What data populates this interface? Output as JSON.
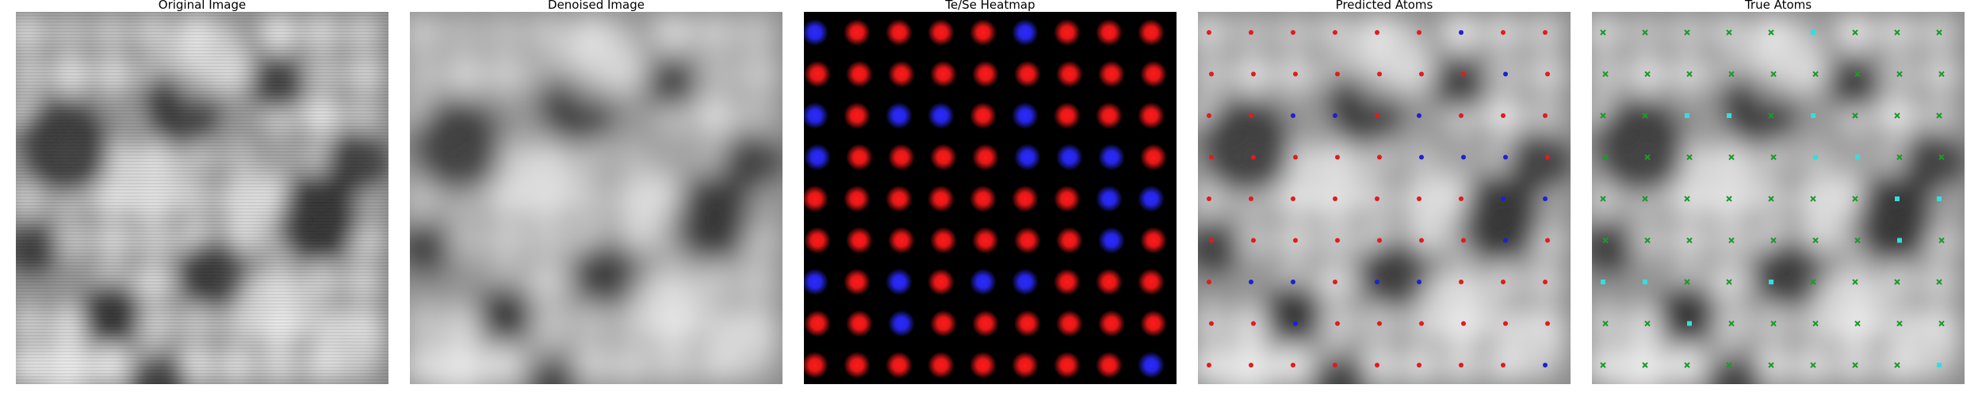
{
  "panels": [
    {
      "title": "Original Image",
      "kind": "original",
      "seed": 7
    },
    {
      "title": "Denoised Image",
      "kind": "denoised",
      "seed": 7
    },
    {
      "title": "Te/Se Heatmap",
      "kind": "heatmap",
      "seed": 11
    },
    {
      "title": "Predicted Atoms",
      "kind": "predicted",
      "seed": 7
    },
    {
      "title": "True Atoms",
      "kind": "true",
      "seed": 7
    }
  ],
  "lattice": {
    "rows": 9,
    "cols": 9,
    "predicted_se_sites": [
      [
        0,
        6
      ],
      [
        1,
        7
      ],
      [
        2,
        2
      ],
      [
        2,
        3
      ],
      [
        2,
        5
      ],
      [
        3,
        5
      ],
      [
        3,
        6
      ],
      [
        3,
        7
      ],
      [
        4,
        7
      ],
      [
        4,
        8
      ],
      [
        5,
        7
      ],
      [
        6,
        1
      ],
      [
        6,
        2
      ],
      [
        6,
        4
      ],
      [
        6,
        5
      ],
      [
        7,
        2
      ],
      [
        8,
        8
      ]
    ],
    "true_se_sites": [
      [
        0,
        5
      ],
      [
        2,
        2
      ],
      [
        2,
        3
      ],
      [
        2,
        5
      ],
      [
        3,
        5
      ],
      [
        3,
        6
      ],
      [
        4,
        7
      ],
      [
        4,
        8
      ],
      [
        5,
        7
      ],
      [
        6,
        0
      ],
      [
        6,
        1
      ],
      [
        6,
        4
      ],
      [
        7,
        2
      ],
      [
        8,
        8
      ]
    ],
    "heatmap_se_sites": [
      [
        0,
        0
      ],
      [
        0,
        5
      ],
      [
        2,
        0
      ],
      [
        2,
        2
      ],
      [
        2,
        3
      ],
      [
        2,
        5
      ],
      [
        3,
        0
      ],
      [
        3,
        5
      ],
      [
        3,
        6
      ],
      [
        3,
        7
      ],
      [
        4,
        7
      ],
      [
        4,
        8
      ],
      [
        5,
        7
      ],
      [
        6,
        0
      ],
      [
        6,
        2
      ],
      [
        6,
        4
      ],
      [
        6,
        5
      ],
      [
        7,
        2
      ],
      [
        8,
        8
      ]
    ]
  },
  "colors": {
    "te_predicted": "#e41a1c",
    "se_predicted": "#1f1fd6",
    "te_true": "#1a9a2a",
    "se_true": "#2fe0e0",
    "heat_te": "#ff1a1a",
    "heat_se": "#2a2aff"
  }
}
